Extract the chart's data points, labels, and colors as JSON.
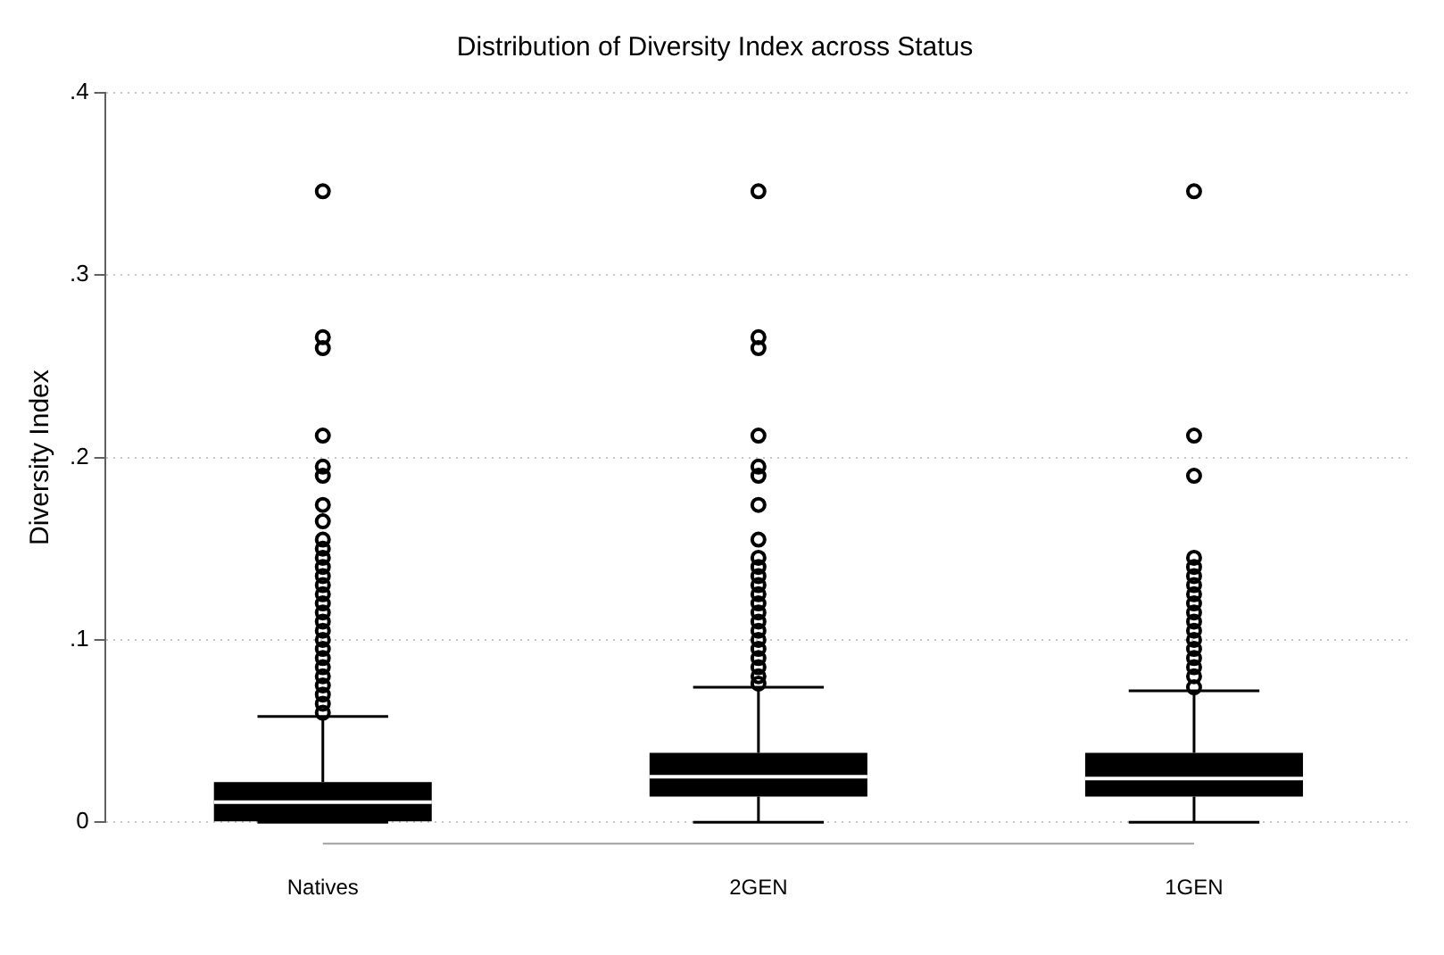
{
  "chart_data": {
    "type": "box",
    "title": "Distribution of Diversity Index across Status",
    "ylabel": "Diversity Index",
    "categories": [
      "Natives",
      "2GEN",
      "1GEN"
    ],
    "boxes": [
      {
        "low": 0,
        "q1": 0,
        "median": 0.011,
        "q3": 0.022,
        "high": 0.058,
        "outliers": [
          0.346,
          0.266,
          0.26,
          0.212,
          0.195,
          0.19,
          0.174,
          0.165,
          0.155,
          0.15,
          0.145,
          0.14,
          0.135,
          0.13,
          0.125,
          0.12,
          0.115,
          0.11,
          0.105,
          0.1,
          0.095,
          0.09,
          0.085,
          0.08,
          0.075,
          0.07,
          0.065,
          0.06
        ]
      },
      {
        "low": 0,
        "q1": 0.014,
        "median": 0.025,
        "q3": 0.038,
        "high": 0.074,
        "outliers": [
          0.346,
          0.266,
          0.26,
          0.212,
          0.195,
          0.19,
          0.174,
          0.155,
          0.145,
          0.14,
          0.135,
          0.13,
          0.125,
          0.12,
          0.115,
          0.11,
          0.105,
          0.1,
          0.095,
          0.09,
          0.085,
          0.08,
          0.076
        ]
      },
      {
        "low": 0,
        "q1": 0.014,
        "median": 0.024,
        "q3": 0.038,
        "high": 0.072,
        "outliers": [
          0.346,
          0.212,
          0.19,
          0.145,
          0.14,
          0.135,
          0.13,
          0.125,
          0.12,
          0.115,
          0.11,
          0.105,
          0.1,
          0.095,
          0.09,
          0.085,
          0.08,
          0.074
        ]
      }
    ],
    "color": "#000000",
    "ylim": [
      0,
      0.4
    ],
    "yticks": [
      {
        "value": 0,
        "label": "0"
      },
      {
        "value": 0.1,
        "label": ".1"
      },
      {
        "value": 0.2,
        "label": ".2"
      },
      {
        "value": 0.3,
        "label": ".3"
      },
      {
        "value": 0.4,
        "label": ".4"
      }
    ],
    "grid": "y",
    "legend": false,
    "marker": "circle"
  }
}
